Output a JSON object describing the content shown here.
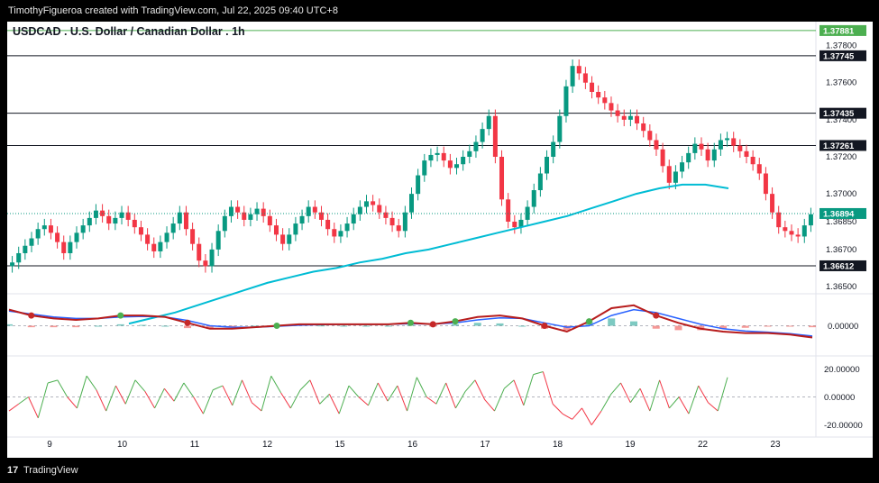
{
  "attribution": "TimothyFigueroa created with TradingView.com, Jul 22, 2025 09:40 UTC+8",
  "footer_brand": "TradingView",
  "footer_logo": "17",
  "chart_data": {
    "type": "line",
    "title": "USDCAD . U.S. Dollar / Canadian Dollar . 1h",
    "currency_label": "CAD",
    "price_ticks": [
      "1.37800",
      "1.37600",
      "1.37400",
      "1.37200",
      "1.37000",
      "1.36850",
      "1.36700",
      "1.36500"
    ],
    "price_ylim": [
      1.365,
      1.379
    ],
    "horizontal_levels": [
      {
        "label": "1.37881",
        "value": 1.37881,
        "color": "#4caf50"
      },
      {
        "label": "1.37745",
        "value": 1.37745,
        "color": "#131722"
      },
      {
        "label": "1.37435",
        "value": 1.37435,
        "color": "#131722"
      },
      {
        "label": "1.37261",
        "value": 1.37261,
        "color": "#131722"
      },
      {
        "label": "1.36612",
        "value": 1.36612,
        "color": "#131722"
      }
    ],
    "last_price": {
      "label": "1.36894",
      "value": 1.36894,
      "color": "#089981"
    },
    "x_labels": [
      "9",
      "10",
      "11",
      "12",
      "15",
      "16",
      "17",
      "18",
      "19",
      "22",
      "23"
    ],
    "candle_close_series": [
      1.3663,
      1.3668,
      1.3672,
      1.3676,
      1.3681,
      1.3683,
      1.3679,
      1.3674,
      1.3668,
      1.3674,
      1.3679,
      1.3683,
      1.3687,
      1.3691,
      1.3688,
      1.3684,
      1.3687,
      1.369,
      1.3686,
      1.3682,
      1.3678,
      1.3673,
      1.3669,
      1.3674,
      1.3679,
      1.3684,
      1.369,
      1.3681,
      1.3673,
      1.3664,
      1.3661,
      1.367,
      1.368,
      1.3688,
      1.3693,
      1.369,
      1.3686,
      1.3689,
      1.3692,
      1.3688,
      1.3683,
      1.3678,
      1.3673,
      1.3678,
      1.3684,
      1.3688,
      1.3693,
      1.369,
      1.3686,
      1.3681,
      1.3677,
      1.368,
      1.3684,
      1.3689,
      1.3693,
      1.3696,
      1.3694,
      1.369,
      1.3687,
      1.3683,
      1.368,
      1.369,
      1.37,
      1.371,
      1.3718,
      1.3721,
      1.3722,
      1.3718,
      1.3714,
      1.3716,
      1.372,
      1.3723,
      1.3728,
      1.3735,
      1.3742,
      1.372,
      1.3697,
      1.3685,
      1.3682,
      1.3686,
      1.3693,
      1.3702,
      1.3711,
      1.372,
      1.3728,
      1.3742,
      1.3758,
      1.3769,
      1.3765,
      1.376,
      1.3755,
      1.3752,
      1.3749,
      1.3745,
      1.3742,
      1.374,
      1.3742,
      1.3738,
      1.3734,
      1.3729,
      1.3724,
      1.3715,
      1.3706,
      1.3712,
      1.3717,
      1.3722,
      1.3727,
      1.3724,
      1.3718,
      1.3724,
      1.3729,
      1.373,
      1.3726,
      1.3723,
      1.372,
      1.3716,
      1.3711,
      1.37,
      1.369,
      1.3682,
      1.368,
      1.3678,
      1.3677,
      1.3683,
      1.3689
    ],
    "ma_series": [
      1.363,
      1.3633,
      1.3636,
      1.364,
      1.3644,
      1.3648,
      1.3652,
      1.3655,
      1.3658,
      1.366,
      1.3663,
      1.3665,
      1.3668,
      1.367,
      1.3673,
      1.3676,
      1.3679,
      1.3682,
      1.3685,
      1.3688,
      1.3692,
      1.3696,
      1.37,
      1.3703,
      1.3705,
      1.3705,
      1.3703
    ],
    "macd_ylim": [
      -1,
      1
    ],
    "macd_tick": "0.00000",
    "macd_series": {
      "fast": [
        0.55,
        0.35,
        0.25,
        0.2,
        0.25,
        0.35,
        0.35,
        0.3,
        0.1,
        -0.1,
        -0.1,
        -0.05,
        0.0,
        0.05,
        0.05,
        0.05,
        0.05,
        0.05,
        0.1,
        0.05,
        0.15,
        0.3,
        0.35,
        0.25,
        0.0,
        -0.2,
        0.15,
        0.6,
        0.7,
        0.35,
        0.1,
        -0.1,
        -0.2,
        -0.25,
        -0.25,
        -0.3,
        -0.4
      ],
      "signal": [
        0.5,
        0.4,
        0.3,
        0.25,
        0.25,
        0.3,
        0.32,
        0.3,
        0.18,
        0.0,
        -0.05,
        -0.05,
        -0.02,
        0.02,
        0.04,
        0.05,
        0.05,
        0.05,
        0.07,
        0.06,
        0.1,
        0.2,
        0.27,
        0.25,
        0.1,
        -0.05,
        0.0,
        0.35,
        0.55,
        0.45,
        0.25,
        0.05,
        -0.1,
        -0.18,
        -0.22,
        -0.27,
        -0.35
      ]
    },
    "oscillator_ylim": [
      -28,
      28
    ],
    "oscillator_ticks": [
      "20.00000",
      "0.00000",
      "-20.00000"
    ],
    "oscillator_values": [
      -10,
      -5,
      0,
      -15,
      10,
      12,
      0,
      -8,
      15,
      5,
      -10,
      8,
      -5,
      12,
      4,
      -8,
      6,
      -3,
      10,
      0,
      -12,
      5,
      8,
      -6,
      12,
      -4,
      -10,
      15,
      3,
      -8,
      5,
      12,
      -5,
      2,
      -12,
      8,
      0,
      -6,
      10,
      -3,
      8,
      -10,
      14,
      0,
      -5,
      10,
      -8,
      4,
      12,
      -2,
      -10,
      6,
      12,
      -6,
      16,
      18,
      -5,
      -12,
      -16,
      -8,
      -20,
      -10,
      2,
      10,
      -4,
      6,
      -10,
      12,
      -8,
      0,
      -12,
      8,
      -4,
      -10,
      14
    ]
  }
}
